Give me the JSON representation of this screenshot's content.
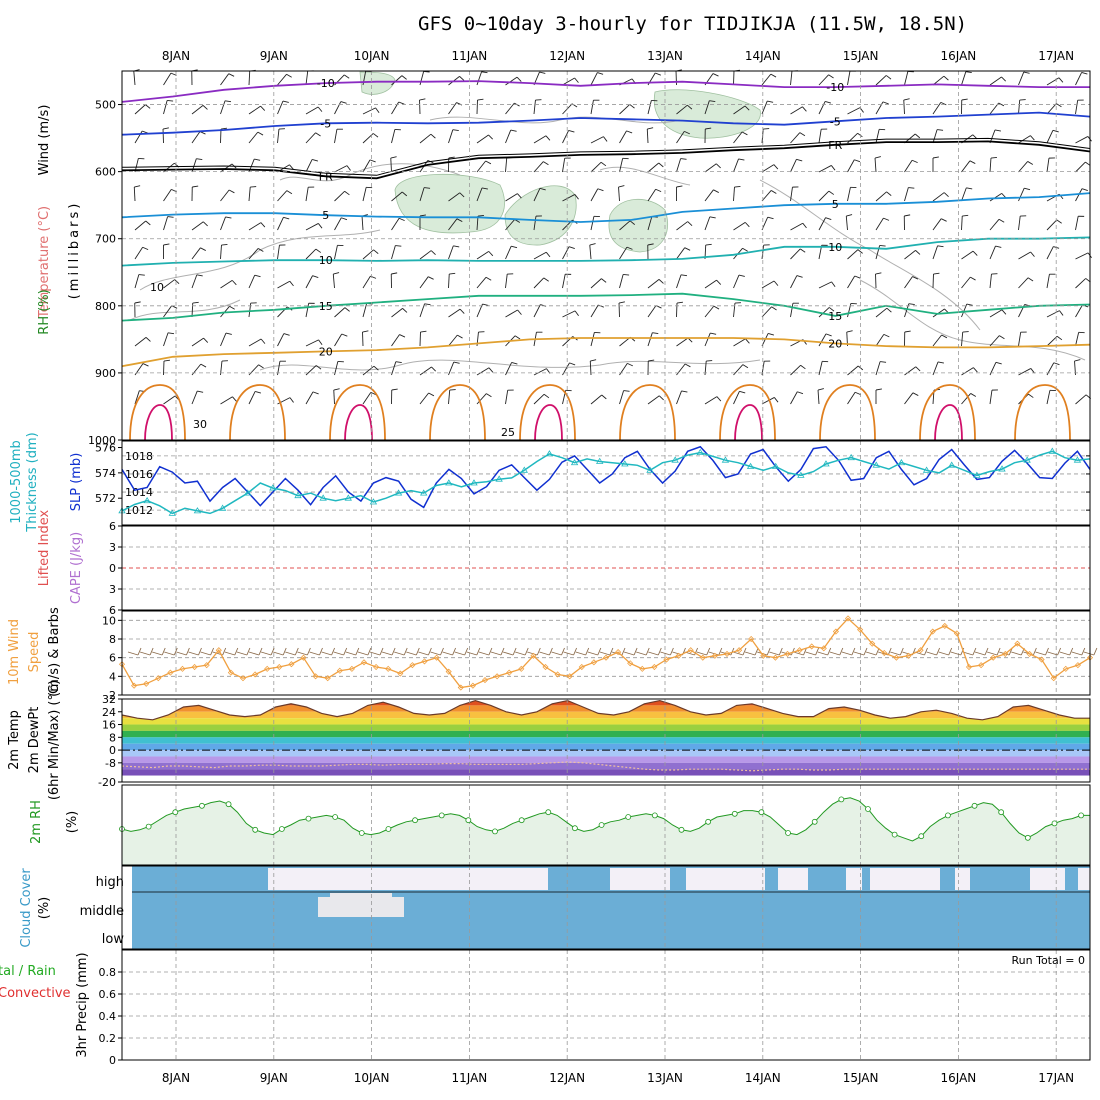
{
  "title": "GFS 0~10day 3-hourly for TIDJIKJA (11.5W, 18.5N)",
  "days": [
    "8JAN",
    "9JAN",
    "10JAN",
    "11JAN",
    "12JAN",
    "13JAN",
    "14JAN",
    "15JAN",
    "16JAN",
    "17JAN"
  ],
  "colors": {
    "grid": "#999999",
    "rh_shade": "#d9ebd9",
    "rh_contour": "#b0b0b0",
    "temp_m10": "#8a2bc2",
    "temp_m5": "#2040d0",
    "temp_fr": "#000000",
    "temp_5": "#1a8fd6",
    "temp_10": "#20b0b0",
    "temp_15": "#20b080",
    "temp_20": "#e0a030",
    "temp_25": "#e08020",
    "temp_30": "#d0106a",
    "slp": "#1030d0",
    "thick": "#20b8c0",
    "wind10": "#f0a040",
    "rh2m": "#229922",
    "cloud": "#6baed6",
    "cloud_gap": "#f3f0f7",
    "li_zero": "#e05050"
  },
  "panel_labels": {
    "upper": {
      "wind": "Wind (m/s)",
      "temp": "Temperature (°C)",
      "rh": "RH (%)",
      "units": "(millibars)"
    },
    "slp_thick": {
      "thick": "1000-500mb",
      "thick2": "Thickness (dm)",
      "slp": "SLP (mb)"
    },
    "li_cape": {
      "li": "Lifted Index",
      "cape": "CAPE (J/kg)"
    },
    "wind10": {
      "l1": "10m Wind",
      "l2": "Speed",
      "l3": "(m/s) & Barbs"
    },
    "temp2m": {
      "l1": "2m Temp",
      "l2": "2m DewPt",
      "l3": "(6hr Min/Max) (°C)"
    },
    "rh2m": {
      "l1": "2m RH",
      "l2": "(%)"
    },
    "cloud": {
      "l1": "Cloud Cover",
      "l2": "(%)",
      "high": "high",
      "middle": "middle",
      "low": "low"
    },
    "precip": {
      "l1": "tal / Rain",
      "l2": "Convective",
      "l3": "3hr Precip (mm)",
      "run_total": "Run Total = 0"
    }
  },
  "chart_data": [
    {
      "type": "contour",
      "name": "upper-air",
      "y_ticks": [
        500,
        600,
        700,
        800,
        900,
        1000
      ],
      "ylim": [
        450,
        1000
      ],
      "temp_labels": [
        "-10",
        "-5",
        "FR",
        "5",
        "10",
        "15",
        "20",
        "25",
        "30"
      ],
      "rh_labels": [
        "10"
      ],
      "isotherms": [
        {
          "label": "-10",
          "color_key": "temp_m10",
          "p": [
            496,
            488,
            478,
            472,
            468,
            466,
            466,
            465,
            468,
            472,
            468,
            466,
            470,
            474,
            474,
            472,
            470,
            472,
            474,
            474
          ]
        },
        {
          "label": "-5",
          "color_key": "temp_m5",
          "p": [
            545,
            542,
            538,
            532,
            528,
            527,
            528,
            527,
            524,
            520,
            522,
            524,
            528,
            530,
            525,
            520,
            518,
            515,
            512,
            518
          ]
        },
        {
          "label": "FR",
          "color_key": "temp_fr",
          "p": [
            598,
            597,
            596,
            598,
            607,
            610,
            590,
            580,
            578,
            575,
            574,
            572,
            568,
            565,
            560,
            556,
            556,
            555,
            560,
            570
          ]
        },
        {
          "label": "5",
          "color_key": "temp_5",
          "p": [
            668,
            664,
            662,
            662,
            665,
            667,
            668,
            668,
            672,
            675,
            672,
            660,
            655,
            650,
            648,
            648,
            645,
            640,
            638,
            632
          ]
        },
        {
          "label": "10",
          "color_key": "temp_10",
          "p": [
            740,
            736,
            734,
            732,
            732,
            733,
            732,
            733,
            733,
            733,
            732,
            730,
            724,
            712,
            712,
            715,
            705,
            700,
            700,
            698
          ]
        },
        {
          "label": "15",
          "color_key": "temp_15",
          "p": [
            822,
            818,
            810,
            806,
            800,
            795,
            790,
            785,
            785,
            785,
            784,
            782,
            790,
            800,
            815,
            800,
            812,
            806,
            800,
            798
          ]
        },
        {
          "label": "20",
          "color_key": "temp_20",
          "p": [
            890,
            876,
            872,
            870,
            868,
            866,
            862,
            856,
            850,
            848,
            848,
            848,
            848,
            850,
            856,
            860,
            862,
            862,
            860,
            858
          ]
        }
      ]
    },
    {
      "type": "line",
      "name": "slp-thickness",
      "slp_ticks": [
        1012,
        1014,
        1016,
        1018
      ],
      "thick_ticks": [
        572,
        574,
        576
      ],
      "series": [
        {
          "name": "SLP",
          "axis": "slp",
          "color_key": "slp",
          "values": [
            1016.5,
            1014.2,
            1014.5,
            1016.8,
            1016.2,
            1015.0,
            1015.2,
            1013.0,
            1014.5,
            1015.5,
            1014.0,
            1012.5,
            1014.0,
            1015.5,
            1014.2,
            1012.6,
            1014.5,
            1015.8,
            1014.0,
            1013.0,
            1015.0,
            1015.6,
            1015.2,
            1013.2,
            1012.3,
            1015.0,
            1016.5,
            1015.5,
            1013.8,
            1014.6,
            1016.4,
            1017.0,
            1015.6,
            1014.2,
            1015.4,
            1017.3,
            1018.0,
            1016.5,
            1015.0,
            1016.0,
            1017.8,
            1018.5,
            1016.5,
            1015.0,
            1016.3,
            1018.5,
            1019.0,
            1017.5,
            1015.6,
            1016.0,
            1018.2,
            1018.7,
            1016.8,
            1015.2,
            1016.5,
            1018.8,
            1019.0,
            1017.5,
            1015.3,
            1015.5,
            1017.8,
            1018.5,
            1016.5,
            1014.8,
            1015.5,
            1017.6,
            1018.7,
            1017.0,
            1015.4,
            1015.6,
            1017.4,
            1018.6,
            1017.2,
            1015.6,
            1015.5,
            1017.2,
            1018.5,
            1016.5
          ]
        },
        {
          "name": "Thickness",
          "axis": "thick",
          "color_key": "thick",
          "values": [
            571.0,
            571.5,
            571.8,
            571.4,
            570.8,
            571.2,
            571.0,
            570.8,
            571.2,
            571.8,
            572.4,
            573.2,
            572.8,
            572.6,
            572.2,
            572.4,
            572.0,
            571.8,
            572.0,
            572.2,
            571.7,
            572.0,
            572.4,
            572.6,
            572.4,
            573.0,
            573.2,
            572.9,
            573.2,
            573.3,
            573.5,
            573.6,
            574.2,
            574.9,
            575.5,
            575.2,
            574.8,
            575.1,
            574.9,
            574.8,
            574.7,
            574.6,
            574.2,
            574.8,
            575.0,
            575.4,
            575.6,
            575.3,
            575.0,
            574.8,
            574.5,
            574.2,
            574.5,
            574.0,
            573.8,
            574.1,
            574.7,
            575.0,
            575.2,
            574.9,
            574.6,
            574.3,
            574.8,
            574.5,
            574.2,
            574.0,
            574.6,
            574.2,
            573.8,
            574.1,
            574.3,
            574.8,
            575.0,
            575.4,
            575.7,
            575.2,
            575.0,
            575.1
          ]
        }
      ]
    },
    {
      "type": "line",
      "name": "lifted-index-cape",
      "y_ticks": [
        -6,
        -3,
        0,
        3,
        6
      ],
      "ylim": [
        -6,
        6
      ]
    },
    {
      "type": "line",
      "name": "10m-wind",
      "y_ticks": [
        2,
        4,
        6,
        8,
        10
      ],
      "ylim": [
        2,
        11
      ],
      "series": [
        {
          "name": "10m Wind Speed",
          "color_key": "wind10",
          "values": [
            5.3,
            3.0,
            3.2,
            3.8,
            4.4,
            4.8,
            5.0,
            5.2,
            6.8,
            4.4,
            3.8,
            4.2,
            4.8,
            5.0,
            5.3,
            6.0,
            4.0,
            3.8,
            4.6,
            4.8,
            5.5,
            5.0,
            4.8,
            4.3,
            5.2,
            5.6,
            6.0,
            4.5,
            2.8,
            3.0,
            3.6,
            4.0,
            4.4,
            4.8,
            6.2,
            5.0,
            4.2,
            4.0,
            5.0,
            5.5,
            6.0,
            6.6,
            5.4,
            4.8,
            5.0,
            5.8,
            6.2,
            6.8,
            6.0,
            6.2,
            6.4,
            6.8,
            8.0,
            6.2,
            6.0,
            6.4,
            6.8,
            7.2,
            7.0,
            8.8,
            10.2,
            9.0,
            7.5,
            6.5,
            6.0,
            6.2,
            6.8,
            8.8,
            9.4,
            8.6,
            5.0,
            5.2,
            6.0,
            6.4,
            7.5,
            6.4,
            5.8,
            3.8,
            4.8,
            5.2,
            6.0
          ]
        }
      ]
    },
    {
      "type": "area",
      "name": "2m-temp-dewpoint",
      "y_ticks": [
        -20,
        -8,
        0,
        8,
        16,
        24,
        32
      ],
      "ylim": [
        -20,
        32
      ],
      "series": [
        {
          "name": "2m Temp",
          "values": [
            22,
            20,
            19,
            22,
            27,
            28,
            25,
            22,
            21,
            22,
            27,
            29,
            27,
            23,
            21,
            23,
            28,
            30,
            27,
            23,
            22,
            23,
            28,
            31,
            28,
            24,
            22,
            24,
            29,
            31,
            27,
            23,
            22,
            24,
            29,
            31,
            28,
            24,
            22,
            23,
            28,
            29,
            26,
            23,
            21,
            21,
            26,
            27,
            25,
            22,
            20,
            21,
            24,
            25,
            23,
            20,
            19,
            21,
            27,
            28,
            25,
            22,
            20,
            20
          ]
        },
        {
          "name": "2m DewPt",
          "values": [
            -10,
            -10.5,
            -11,
            -10,
            -10,
            -10.5,
            -11,
            -10,
            -10,
            -9.5,
            -9.5,
            -10,
            -10,
            -10,
            -9.5,
            -9,
            -9,
            -9.5,
            -9,
            -9,
            -9,
            -8.5,
            -8.5,
            -9,
            -9,
            -9,
            -9,
            -8.5,
            -8,
            -7.5,
            -8,
            -9,
            -10,
            -11,
            -12,
            -12.5,
            -12.5,
            -12,
            -12,
            -12,
            -12.5,
            -13,
            -12.5,
            -12,
            -12,
            -12.5,
            -12.5,
            -12,
            -12,
            -12,
            -12,
            -12,
            -12,
            -12,
            -12,
            -12,
            -12,
            -12,
            -12,
            -12,
            -12,
            -12,
            -12,
            -12
          ]
        }
      ]
    },
    {
      "type": "area",
      "name": "2m-rh",
      "ylim": [
        0,
        100
      ],
      "series": [
        {
          "name": "2m RH",
          "values": [
            45,
            42,
            44,
            48,
            55,
            62,
            66,
            70,
            72,
            74,
            78,
            80,
            76,
            66,
            52,
            44,
            40,
            38,
            45,
            50,
            56,
            58,
            60,
            62,
            60,
            56,
            46,
            40,
            38,
            40,
            45,
            50,
            54,
            56,
            58,
            60,
            62,
            64,
            62,
            56,
            48,
            44,
            42,
            46,
            52,
            56,
            60,
            64,
            66,
            62,
            54,
            46,
            42,
            44,
            50,
            54,
            56,
            60,
            62,
            64,
            62,
            58,
            50,
            44,
            42,
            46,
            54,
            60,
            62,
            64,
            68,
            68,
            66,
            60,
            50,
            40,
            38,
            44,
            54,
            66,
            76,
            82,
            84,
            80,
            70,
            56,
            46,
            38,
            34,
            30,
            36,
            48,
            56,
            62,
            66,
            70,
            74,
            78,
            76,
            66,
            52,
            40,
            34,
            40,
            48,
            52,
            56,
            58,
            62,
            62
          ]
        }
      ]
    },
    {
      "type": "bar",
      "name": "cloud-cover",
      "levels": [
        "high",
        "middle",
        "low"
      ]
    },
    {
      "type": "bar",
      "name": "3hr-precip",
      "y_ticks": [
        0,
        0.2,
        0.4,
        0.6,
        0.8
      ],
      "ylim": [
        0,
        1
      ],
      "values": []
    }
  ]
}
